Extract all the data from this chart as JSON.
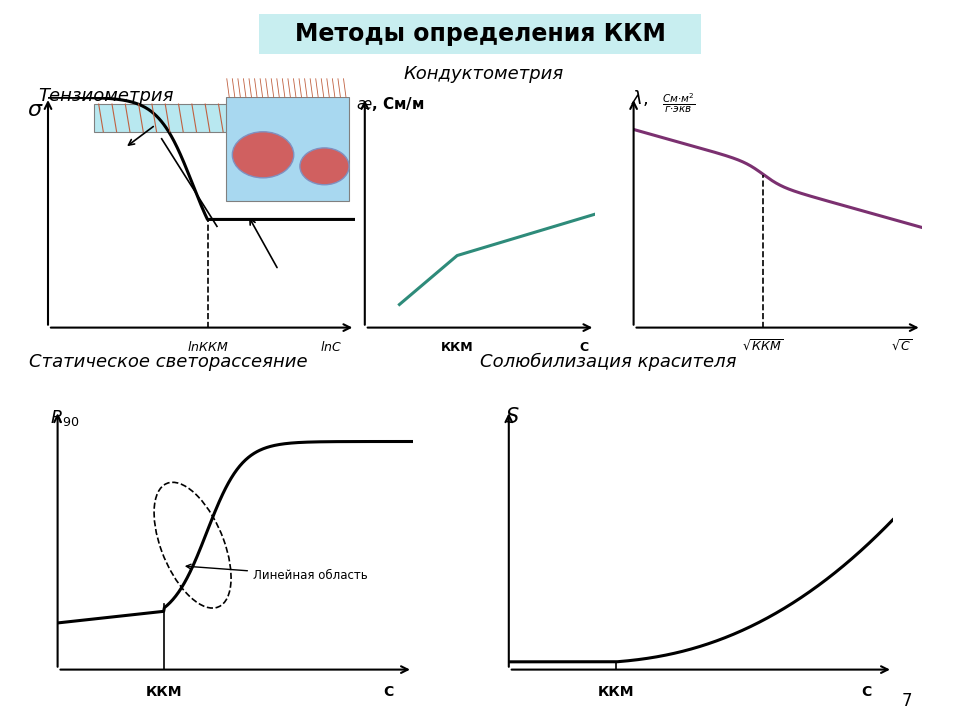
{
  "title": "Методы определения ККМ",
  "title_bg": "#c8eef0",
  "title_fontsize": 17,
  "section1_label": "Тензиометрия",
  "section2_label": "Кондуктометрия",
  "section3_label": "Статическое светорассеяние",
  "section4_label": "Солюбилизация красителя",
  "teal_color": "#2e8b7a",
  "purple_color": "#7b3070",
  "black_color": "#000000",
  "dark_color": "#1a1a1a",
  "arrow_color": "#333333"
}
